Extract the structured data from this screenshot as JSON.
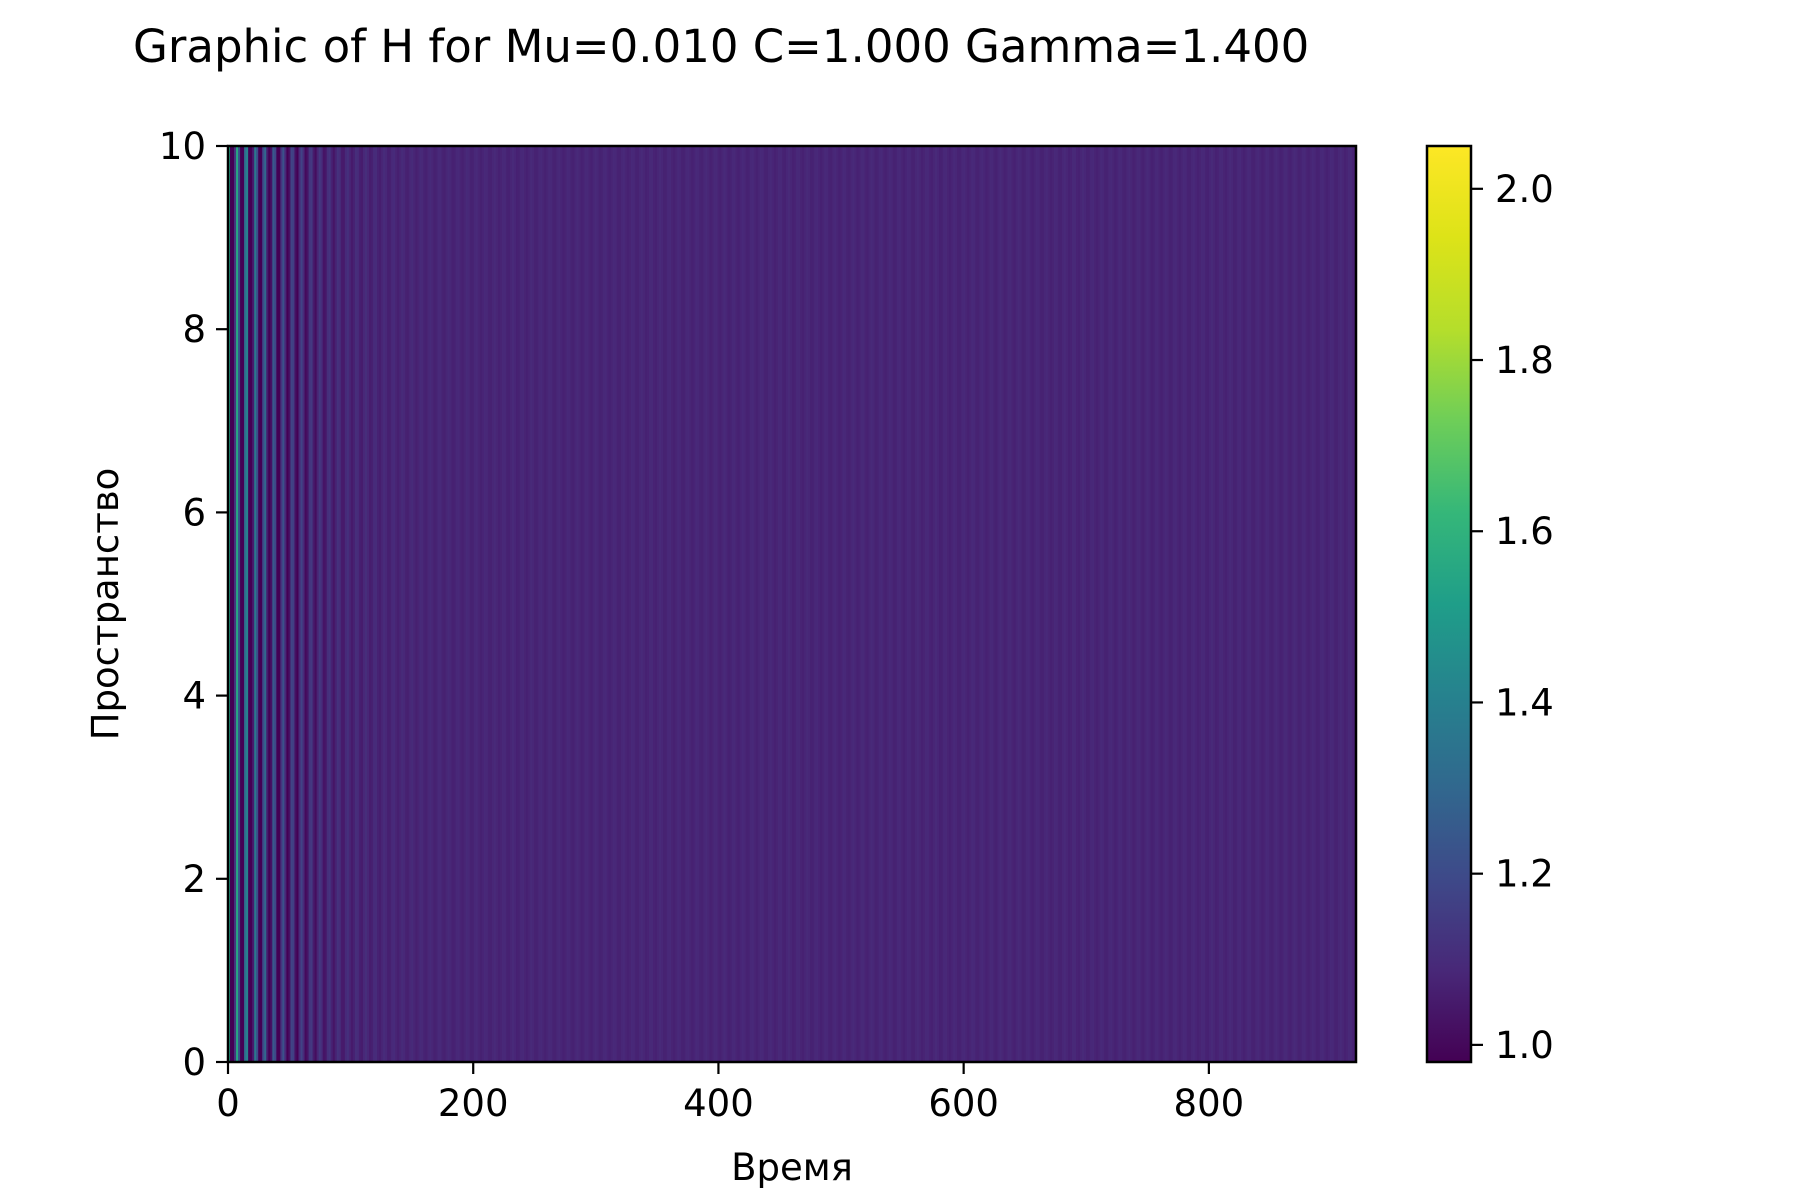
{
  "chart_data": {
    "type": "heatmap",
    "title": "Graphic of H for Mu=0.010 C=1.000 Gamma=1.400",
    "xlabel": "Время",
    "ylabel": "Пространство",
    "xlim": [
      0,
      920
    ],
    "ylim": [
      0,
      10
    ],
    "x_ticks": [
      {
        "value": 0,
        "label": "0"
      },
      {
        "value": 200,
        "label": "200"
      },
      {
        "value": 400,
        "label": "400"
      },
      {
        "value": 600,
        "label": "600"
      },
      {
        "value": 800,
        "label": "800"
      }
    ],
    "y_ticks": [
      {
        "value": 0,
        "label": "0"
      },
      {
        "value": 2,
        "label": "2"
      },
      {
        "value": 4,
        "label": "4"
      },
      {
        "value": 6,
        "label": "6"
      },
      {
        "value": 8,
        "label": "8"
      },
      {
        "value": 10,
        "label": "10"
      }
    ],
    "colorbar": {
      "colormap": "viridis",
      "range": [
        0.98,
        2.05
      ],
      "ticks": [
        {
          "value": 1.0,
          "label": "1.0"
        },
        {
          "value": 1.2,
          "label": "1.2"
        },
        {
          "value": 1.4,
          "label": "1.4"
        },
        {
          "value": 1.6,
          "label": "1.6"
        },
        {
          "value": 1.8,
          "label": "1.8"
        },
        {
          "value": 2.0,
          "label": "2.0"
        }
      ]
    },
    "field_description": {
      "baseline_value": 1.08,
      "oscillation_amplitude_at_t0": 0.6,
      "oscillation_decay_time": 30,
      "oscillation_period": 7.5,
      "variation_along_space": "none"
    }
  },
  "colors": {
    "background": "#ffffff",
    "axes_edge": "#000000",
    "text": "#000000"
  }
}
